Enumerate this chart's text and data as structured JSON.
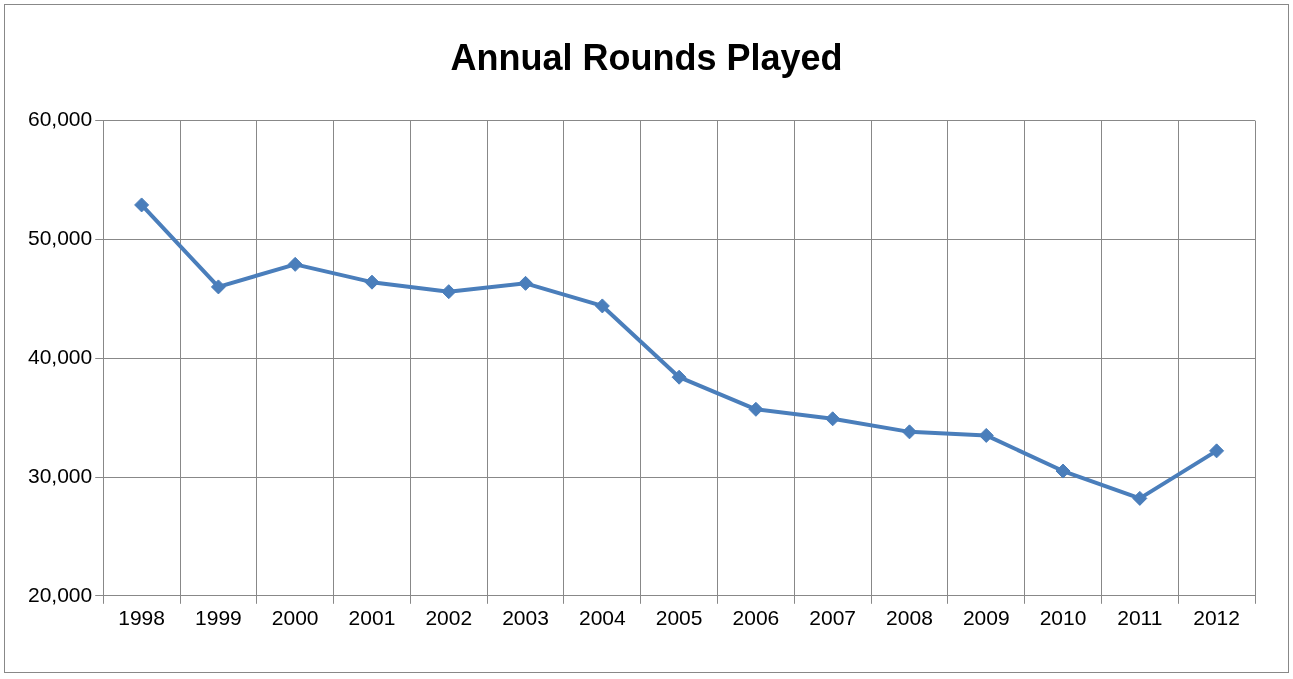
{
  "chart_data": {
    "type": "line",
    "title": "Annual Rounds Played",
    "categories": [
      "1998",
      "1999",
      "2000",
      "2001",
      "2002",
      "2003",
      "2004",
      "2005",
      "2006",
      "2007",
      "2008",
      "2009",
      "2010",
      "2011",
      "2012"
    ],
    "series": [
      {
        "color": "#4a7ebb",
        "values": [
          52900,
          46000,
          47900,
          46400,
          45600,
          46300,
          44400,
          38400,
          35700,
          34900,
          33800,
          33500,
          30500,
          28200,
          32200
        ]
      }
    ],
    "ylim": [
      20000,
      60000
    ],
    "yticks": [
      {
        "value": 20000,
        "label": "20,000"
      },
      {
        "value": 30000,
        "label": "30,000"
      },
      {
        "value": 40000,
        "label": "40,000"
      },
      {
        "value": 50000,
        "label": "50,000"
      },
      {
        "value": 60000,
        "label": "60,000"
      }
    ],
    "grid": true,
    "legend": false,
    "marker": "diamond",
    "line_style": "solid"
  }
}
